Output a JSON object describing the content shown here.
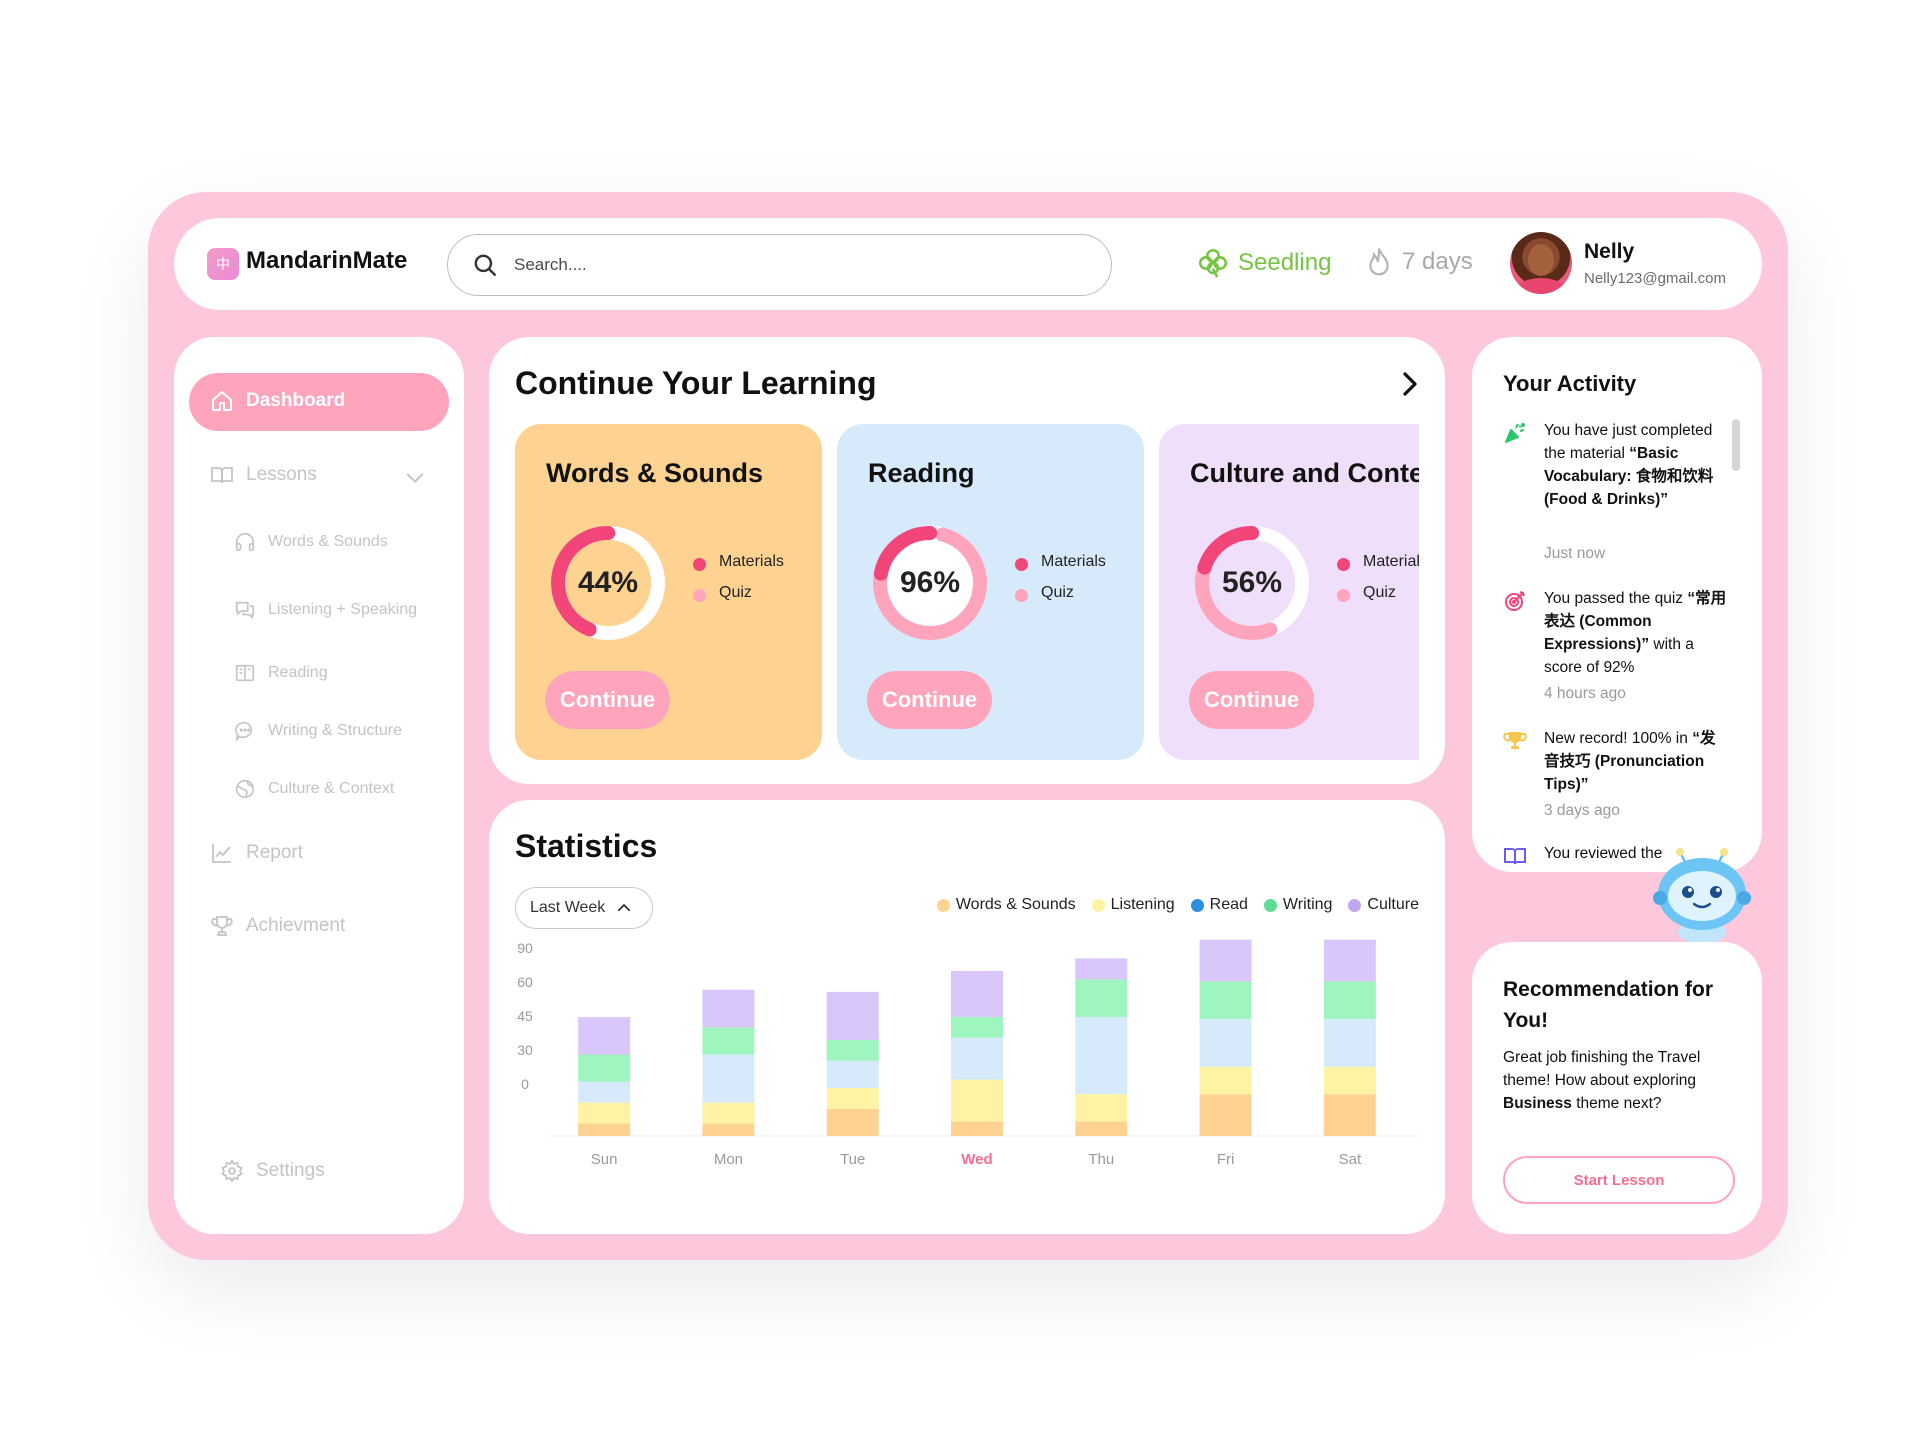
{
  "app": {
    "name": "MandarinMate",
    "logo_glyph": "中"
  },
  "header": {
    "search_placeholder": "Search....",
    "level_label": "Seedling",
    "streak_label": "7 days",
    "user_name": "Nelly",
    "user_email": "Nelly123@gmail.com",
    "level_color": "#76c442"
  },
  "sidebar": {
    "active_color": "#fea5bd",
    "items": [
      {
        "label": "Dashboard",
        "icon": "home-icon"
      },
      {
        "label": "Lessons",
        "icon": "book-icon"
      },
      {
        "label": "Words & Sounds",
        "icon": "headphones-icon"
      },
      {
        "label": "Listening + Speaking",
        "icon": "chat-bubbles-icon"
      },
      {
        "label": "Reading",
        "icon": "open-book-icon"
      },
      {
        "label": "Writing & Structure",
        "icon": "speech-bubble-icon"
      },
      {
        "label": "Culture & Context",
        "icon": "globe-icon"
      },
      {
        "label": "Report",
        "icon": "chart-line-icon"
      },
      {
        "label": "Achievment",
        "icon": "trophy-icon"
      },
      {
        "label": "Settings",
        "icon": "gear-icon"
      }
    ]
  },
  "continue_learning": {
    "title": "Continue Your Learning",
    "cards": [
      {
        "title": "Words & Sounds",
        "percent": "44%",
        "materials_fraction": 0.44,
        "bg": "#fed391",
        "track": "#ffffff",
        "inner": "#fed391",
        "legend_materials": "Materials",
        "legend_quiz": "Quiz",
        "button": "Continue"
      },
      {
        "title": "Reading",
        "percent": "96%",
        "materials_fraction": 0.22,
        "quiz_fraction": 0.74,
        "bg": "#d6eafb",
        "track": "#ffffff",
        "inner": "#ffffff",
        "legend_materials": "Materials",
        "legend_quiz": "Quiz",
        "button": "Continue"
      },
      {
        "title": "Culture and Context",
        "percent": "56%",
        "materials_fraction": 0.2,
        "quiz_fraction": 0.36,
        "bg": "#f0dffb",
        "track": "#ffffff",
        "inner": "#f0dffb",
        "legend_materials": "Materials",
        "legend_quiz": "Quiz",
        "button": "Continue"
      }
    ],
    "materials_color": "#f2457a",
    "quiz_color": "#fea5bd"
  },
  "statistics": {
    "title": "Statistics",
    "period": "Last Week",
    "legend": [
      {
        "name": "Words & Sounds",
        "color": "#fed391"
      },
      {
        "name": "Listening",
        "color": "#fef3a3"
      },
      {
        "name": "Read",
        "color": "#2f8fdf"
      },
      {
        "name": "Writing",
        "color": "#5fdc93"
      },
      {
        "name": "Culture",
        "color": "#c3a6f0"
      }
    ],
    "highlight_day": "Wed",
    "highlight_color": "#f56f92"
  },
  "chart_data": {
    "type": "bar",
    "stacked": true,
    "categories": [
      "Sun",
      "Mon",
      "Tue",
      "Wed",
      "Thu",
      "Fri",
      "Sat"
    ],
    "y_ticks": [
      "90",
      "60",
      "45",
      "30",
      "0"
    ],
    "series": [
      {
        "name": "Words & Sounds",
        "color": "#fed391",
        "values": [
          6,
          6,
          13,
          7,
          7,
          20,
          20
        ]
      },
      {
        "name": "Listening",
        "color": "#fef3a3",
        "values": [
          10,
          10,
          10,
          20,
          13,
          13,
          13
        ]
      },
      {
        "name": "Read",
        "color": "#d6eafb",
        "values": [
          10,
          23,
          13,
          20,
          37,
          23,
          23
        ]
      },
      {
        "name": "Writing",
        "color": "#9ff5c0",
        "values": [
          13,
          13,
          10,
          10,
          18,
          18,
          18
        ]
      },
      {
        "name": "Culture",
        "color": "#d9c6fa",
        "values": [
          18,
          18,
          23,
          22,
          10,
          20,
          20
        ]
      }
    ]
  },
  "activity": {
    "title": "Your Activity",
    "items": [
      {
        "icon": "party-popper-icon",
        "text_html": "You have just completed the material <b>“Basic Vocabulary: 食物和饮料 (Food &amp; Drinks)”</b>",
        "time": "Just now"
      },
      {
        "icon": "target-icon",
        "text_html": "You passed the quiz <b>“常用表达 (Common Expressions)”</b> with a score of 92%",
        "time": "4 hours ago"
      },
      {
        "icon": "trophy-icon",
        "text_html": "New record! 100% in <b>“发音技巧 (Pronunciation Tips)”</b>",
        "time": "3 days ago"
      },
      {
        "icon": "open-book-icon",
        "text_html": "You reviewed the",
        "time": ""
      }
    ]
  },
  "recommendation": {
    "title": "Recommendation for You!",
    "text_before": "Great job finishing the Travel theme! How about exploring ",
    "text_bold": "Business",
    "text_after": " theme next?",
    "button": "Start Lesson"
  }
}
